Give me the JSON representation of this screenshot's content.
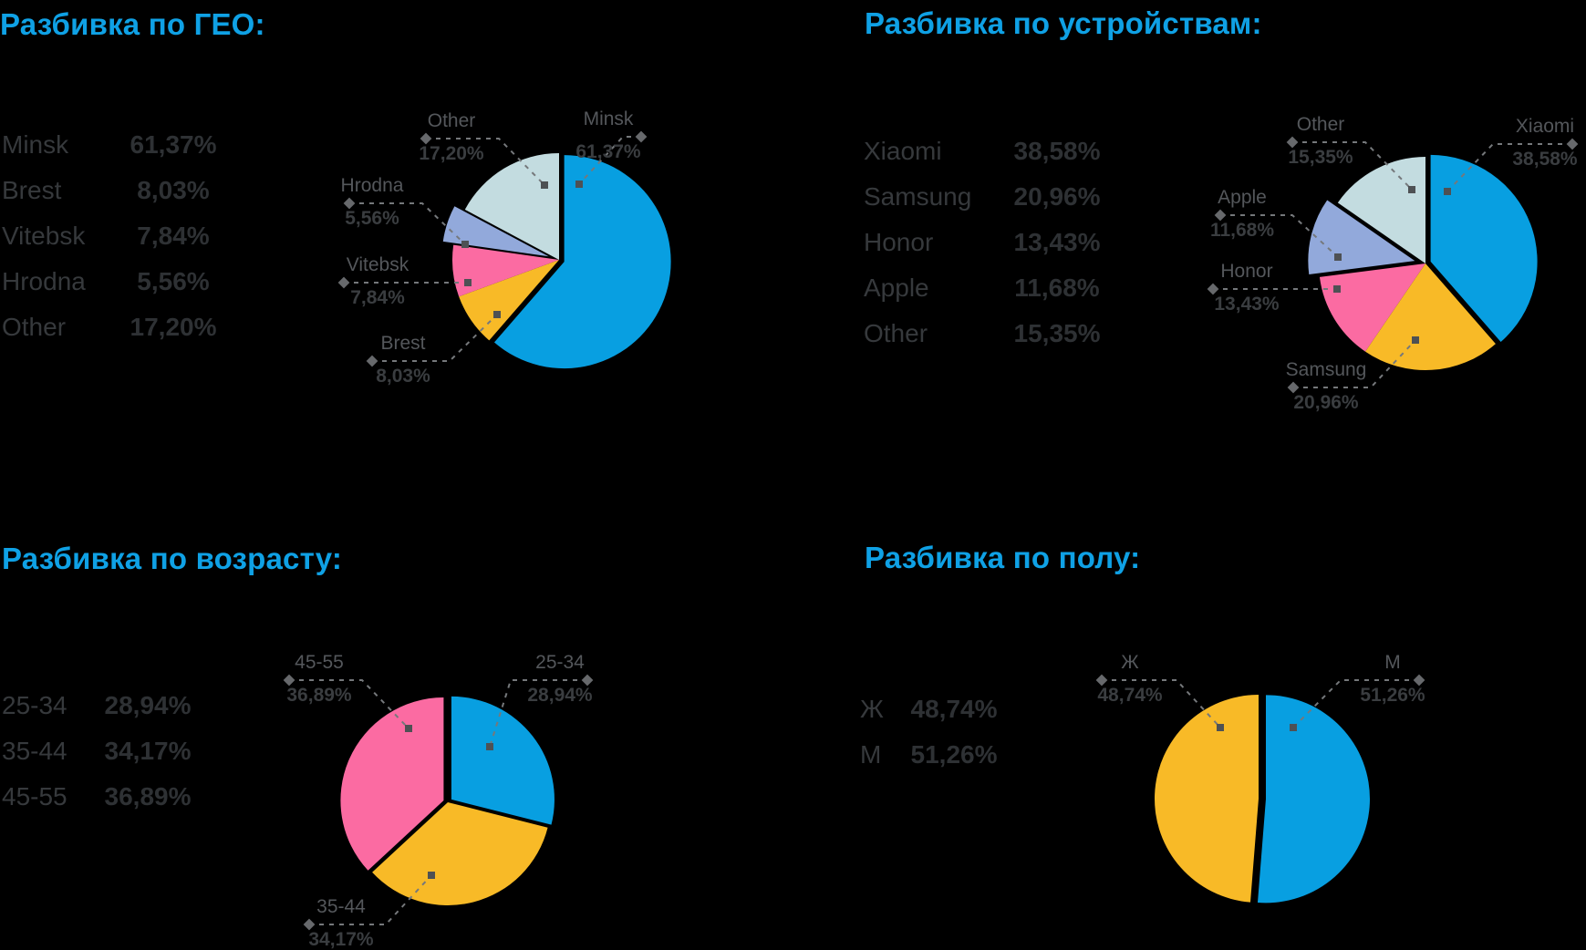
{
  "page": {
    "background": "#000000",
    "title_color": "#0FA1E5",
    "callout_line_color": "#75787B",
    "palette": {
      "blue": "#089FE1",
      "yellow": "#F8BA27",
      "pink": "#FB6BA2",
      "periwinkle": "#92A9DB",
      "pale": "#C3DCE0"
    }
  },
  "chart_data": [
    {
      "type": "pie",
      "key": "geo",
      "title": "Разбивка по ГЕО:",
      "legend_position": "left",
      "slices": [
        {
          "label": "Minsk",
          "pct": "61,37%",
          "value": 61.37,
          "color": "#089FE1"
        },
        {
          "label": "Brest",
          "pct": "8,03%",
          "value": 8.03,
          "color": "#F8BA27"
        },
        {
          "label": "Vitebsk",
          "pct": "7,84%",
          "value": 7.84,
          "color": "#FB6BA2"
        },
        {
          "label": "Hrodna",
          "pct": "5,56%",
          "value": 5.56,
          "color": "#92A9DB"
        },
        {
          "label": "Other",
          "pct": "17,20%",
          "value": 17.2,
          "color": "#C3DCE0"
        }
      ]
    },
    {
      "type": "pie",
      "key": "devices",
      "title": "Разбивка по устройствам:",
      "legend_position": "left",
      "slices": [
        {
          "label": "Xiaomi",
          "pct": "38,58%",
          "value": 38.58,
          "color": "#089FE1"
        },
        {
          "label": "Samsung",
          "pct": "20,96%",
          "value": 20.96,
          "color": "#F8BA27"
        },
        {
          "label": "Honor",
          "pct": "13,43%",
          "value": 13.43,
          "color": "#FB6BA2"
        },
        {
          "label": "Apple",
          "pct": "11,68%",
          "value": 11.68,
          "color": "#92A9DB"
        },
        {
          "label": "Other",
          "pct": "15,35%",
          "value": 15.35,
          "color": "#C3DCE0"
        }
      ]
    },
    {
      "type": "pie",
      "key": "age",
      "title": "Разбивка по возрасту:",
      "legend_position": "left",
      "slices": [
        {
          "label": "25-34",
          "pct": "28,94%",
          "value": 28.94,
          "color": "#089FE1"
        },
        {
          "label": "35-44",
          "pct": "34,17%",
          "value": 34.17,
          "color": "#F8BA27"
        },
        {
          "label": "45-55",
          "pct": "36,89%",
          "value": 36.89,
          "color": "#FB6BA2"
        }
      ]
    },
    {
      "type": "pie",
      "key": "gender",
      "title": "Разбивка по полу:",
      "legend_position": "left",
      "slices": [
        {
          "label": "Ж",
          "pct": "48,74%",
          "value": 48.74,
          "color": "#F8BA27"
        },
        {
          "label": "М",
          "pct": "51,26%",
          "value": 51.26,
          "color": "#089FE1"
        }
      ]
    }
  ]
}
